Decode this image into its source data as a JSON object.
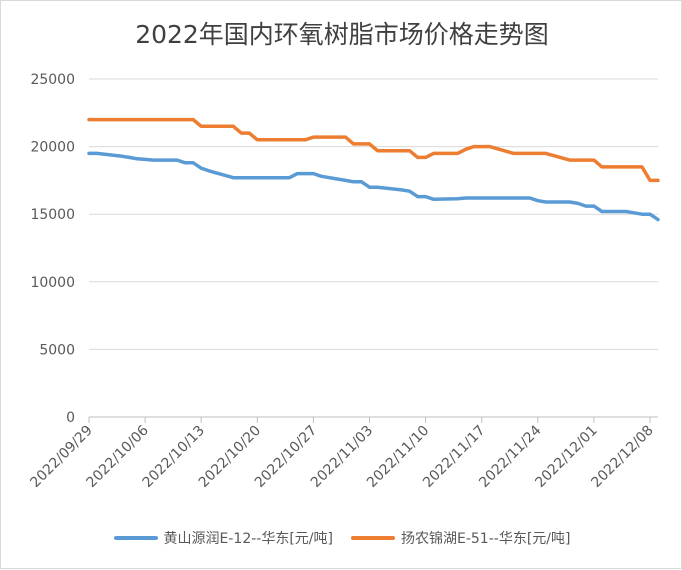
{
  "chart_data": {
    "type": "line",
    "title": "2022年国内环氧树脂市场价格走势图",
    "xlabel": "",
    "ylabel": "",
    "ylim": [
      0,
      25000
    ],
    "yticks": [
      0,
      5000,
      10000,
      15000,
      20000,
      25000
    ],
    "xticks": [
      "2022/09/29",
      "2022/10/06",
      "2022/10/13",
      "2022/10/20",
      "2022/10/27",
      "2022/11/03",
      "2022/11/10",
      "2022/11/17",
      "2022/11/24",
      "2022/12/01",
      "2022/12/08"
    ],
    "x": [
      "2022/09/29",
      "2022/09/30",
      "2022/10/03",
      "2022/10/04",
      "2022/10/05",
      "2022/10/06",
      "2022/10/07",
      "2022/10/10",
      "2022/10/11",
      "2022/10/12",
      "2022/10/13",
      "2022/10/14",
      "2022/10/17",
      "2022/10/18",
      "2022/10/19",
      "2022/10/20",
      "2022/10/21",
      "2022/10/24",
      "2022/10/25",
      "2022/10/26",
      "2022/10/27",
      "2022/10/28",
      "2022/10/31",
      "2022/11/01",
      "2022/11/02",
      "2022/11/03",
      "2022/11/04",
      "2022/11/07",
      "2022/11/08",
      "2022/11/09",
      "2022/11/10",
      "2022/11/11",
      "2022/11/14",
      "2022/11/15",
      "2022/11/16",
      "2022/11/17",
      "2022/11/18",
      "2022/11/21",
      "2022/11/22",
      "2022/11/23",
      "2022/11/24",
      "2022/11/25",
      "2022/11/28",
      "2022/11/29",
      "2022/11/30",
      "2022/12/01",
      "2022/12/02",
      "2022/12/05",
      "2022/12/06",
      "2022/12/07",
      "2022/12/08",
      "2022/12/09"
    ],
    "series": [
      {
        "name": "黄山源润E-12--华东[元/吨]",
        "color": "#5b9bd5",
        "values": [
          19500,
          19500,
          19300,
          19200,
          19100,
          19050,
          19000,
          19000,
          18800,
          18800,
          18400,
          18200,
          17700,
          17700,
          17700,
          17700,
          17700,
          17700,
          18000,
          18000,
          18000,
          17800,
          17500,
          17400,
          17400,
          17000,
          17000,
          16800,
          16700,
          16300,
          16300,
          16100,
          16150,
          16200,
          16200,
          16200,
          16200,
          16200,
          16200,
          16200,
          16000,
          15900,
          15900,
          15800,
          15600,
          15600,
          15200,
          15200,
          15100,
          15000,
          15000,
          14600
        ]
      },
      {
        "name": "扬农锦湖E-51--华东[元/吨]",
        "color": "#ed7d31",
        "values": [
          22000,
          22000,
          22000,
          22000,
          22000,
          22000,
          22000,
          22000,
          22000,
          22000,
          21500,
          21500,
          21500,
          21000,
          21000,
          20500,
          20500,
          20500,
          20500,
          20500,
          20700,
          20700,
          20700,
          20200,
          20200,
          20200,
          19700,
          19700,
          19700,
          19200,
          19200,
          19500,
          19500,
          19800,
          20000,
          20000,
          20000,
          19500,
          19500,
          19500,
          19500,
          19500,
          19000,
          19000,
          19000,
          19000,
          18500,
          18500,
          18500,
          18500,
          17500,
          17500
        ]
      }
    ]
  }
}
